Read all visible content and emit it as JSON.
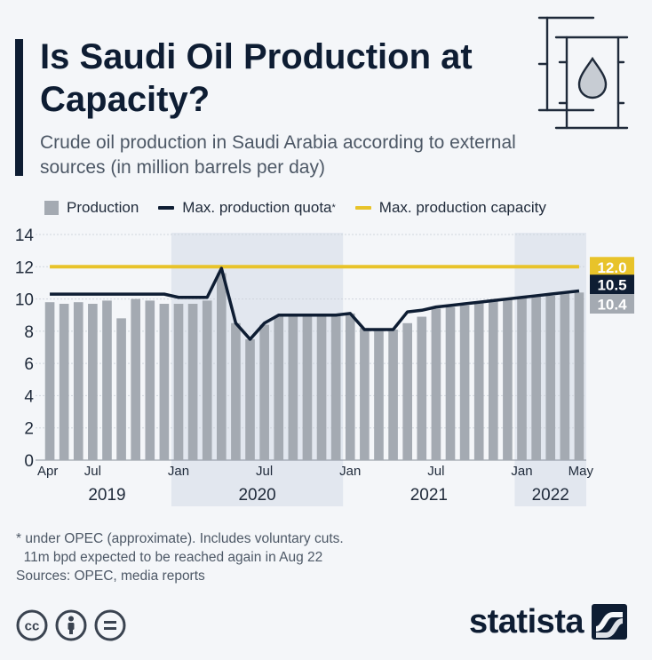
{
  "header": {
    "title": "Is Saudi Oil Production at Capacity?",
    "subtitle": "Crude oil production in Saudi Arabia according to external sources (in million barrels per day)"
  },
  "legend": {
    "production": "Production",
    "quota": "Max. production quota",
    "quota_marker": "*",
    "capacity": "Max. production capacity"
  },
  "footnote": {
    "line1": "* under OPEC (approximate). Includes voluntary cuts.",
    "line2": "  11m bpd expected to be reached again in Aug 22",
    "sources": "Sources: OPEC, media reports"
  },
  "brand": {
    "name": "statista"
  },
  "colors": {
    "production": "#a4aab2",
    "quota": "#0e1d33",
    "capacity": "#e8c32a",
    "shade": "#e2e7ef"
  },
  "icons": [
    "barrel-icon",
    "oil-drop-icon",
    "cc-icon",
    "by-icon",
    "nd-icon",
    "statista-logo-icon"
  ],
  "chart_data": {
    "type": "bar",
    "categories": [
      "Apr 2019",
      "May 2019",
      "Jun 2019",
      "Jul 2019",
      "Aug 2019",
      "Sep 2019",
      "Oct 2019",
      "Nov 2019",
      "Dec 2019",
      "Jan 2020",
      "Feb 2020",
      "Mar 2020",
      "Apr 2020",
      "May 2020",
      "Jun 2020",
      "Jul 2020",
      "Aug 2020",
      "Sep 2020",
      "Oct 2020",
      "Nov 2020",
      "Dec 2020",
      "Jan 2021",
      "Feb 2021",
      "Mar 2021",
      "Apr 2021",
      "May 2021",
      "Jun 2021",
      "Jul 2021",
      "Aug 2021",
      "Sep 2021",
      "Oct 2021",
      "Nov 2021",
      "Dec 2021",
      "Jan 2022",
      "Feb 2022",
      "Mar 2022",
      "Apr 2022",
      "May 2022"
    ],
    "series": [
      {
        "name": "Production",
        "type": "bar",
        "values": [
          9.8,
          9.7,
          9.8,
          9.7,
          9.9,
          8.8,
          10.0,
          9.9,
          9.7,
          9.7,
          9.7,
          9.9,
          11.6,
          8.5,
          7.5,
          8.4,
          8.9,
          9.0,
          8.9,
          9.0,
          9.0,
          9.1,
          8.2,
          8.1,
          8.1,
          8.5,
          8.9,
          9.4,
          9.5,
          9.6,
          9.8,
          9.9,
          10.0,
          10.1,
          10.2,
          10.2,
          10.4,
          10.4
        ]
      },
      {
        "name": "Max. production quota",
        "type": "line",
        "values": [
          10.3,
          10.3,
          10.3,
          10.3,
          10.3,
          10.3,
          10.3,
          10.3,
          10.3,
          10.1,
          10.1,
          10.1,
          11.9,
          8.5,
          7.5,
          8.5,
          9.0,
          9.0,
          9.0,
          9.0,
          9.0,
          9.1,
          8.1,
          8.1,
          8.1,
          9.2,
          9.3,
          9.5,
          9.6,
          9.7,
          9.8,
          9.9,
          10.0,
          10.1,
          10.2,
          10.3,
          10.4,
          10.5
        ]
      },
      {
        "name": "Max. production capacity",
        "type": "line",
        "values": [
          12,
          12,
          12,
          12,
          12,
          12,
          12,
          12,
          12,
          12,
          12,
          12,
          12,
          12,
          12,
          12,
          12,
          12,
          12,
          12,
          12,
          12,
          12,
          12,
          12,
          12,
          12,
          12,
          12,
          12,
          12,
          12,
          12,
          12,
          12,
          12,
          12,
          12
        ]
      }
    ],
    "value_labels": [
      "12.0",
      "10.5",
      "10.4"
    ],
    "x_tick_labels": [
      {
        "index": 0,
        "label": "Apr"
      },
      {
        "index": 3,
        "label": "Jul"
      },
      {
        "index": 9,
        "label": "Jan"
      },
      {
        "index": 15,
        "label": "Jul"
      },
      {
        "index": 21,
        "label": "Jan"
      },
      {
        "index": 27,
        "label": "Jul"
      },
      {
        "index": 33,
        "label": "Jan"
      },
      {
        "index": 37,
        "label": "May"
      }
    ],
    "years": [
      {
        "label": "2019",
        "from": 0,
        "to": 8,
        "shaded": false
      },
      {
        "label": "2020",
        "from": 9,
        "to": 20,
        "shaded": true
      },
      {
        "label": "2021",
        "from": 21,
        "to": 32,
        "shaded": false
      },
      {
        "label": "2022",
        "from": 33,
        "to": 37,
        "shaded": true
      }
    ],
    "y_ticks": [
      "0",
      "2",
      "4",
      "6",
      "8",
      "10",
      "12",
      "14"
    ],
    "ylim": [
      0,
      14
    ],
    "grid": true
  }
}
